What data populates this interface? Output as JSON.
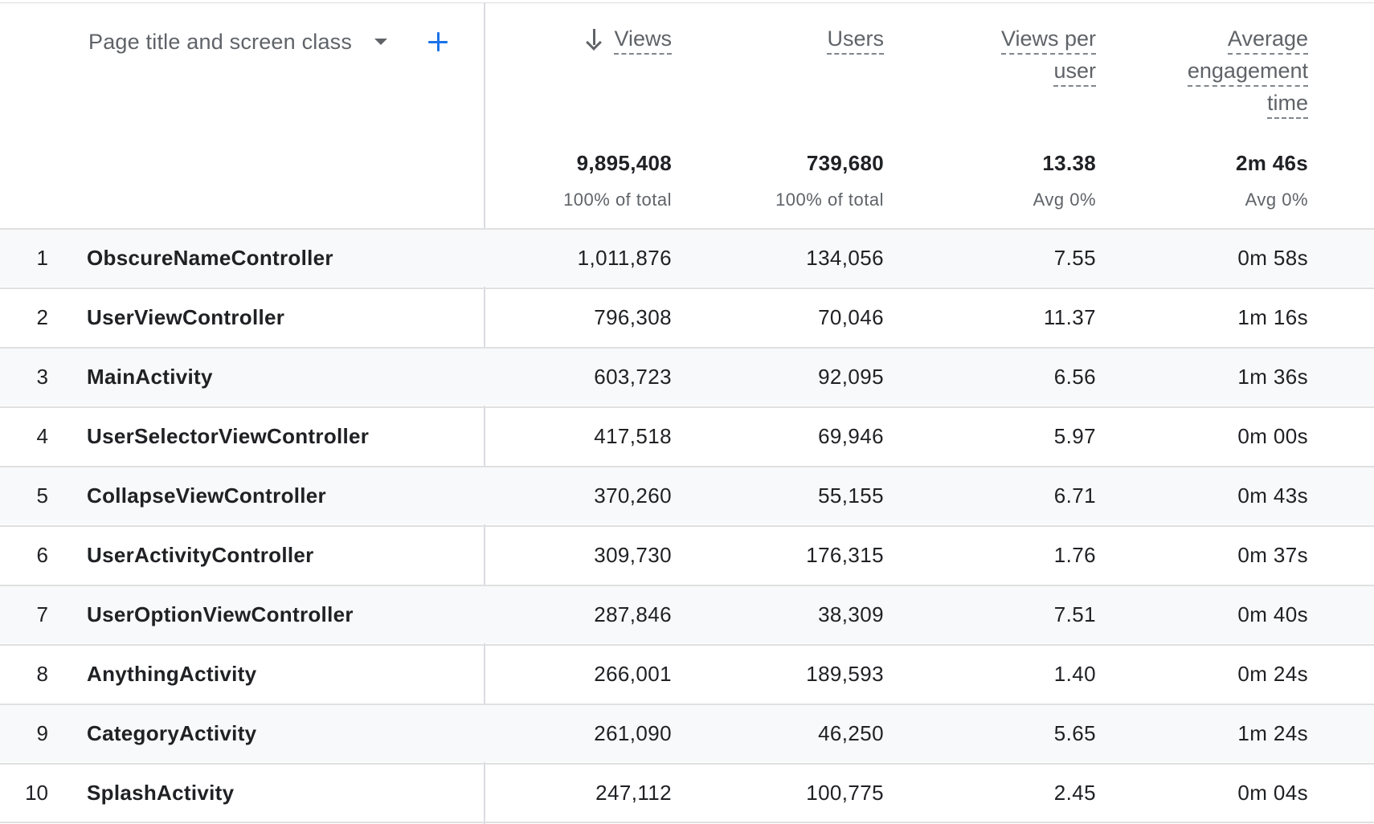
{
  "table": {
    "dimension_label": "Page title and screen class",
    "columns": [
      {
        "label_lines": [
          "Views"
        ],
        "sorted": true
      },
      {
        "label_lines": [
          "Users"
        ],
        "sorted": false
      },
      {
        "label_lines": [
          "Views per",
          "user"
        ],
        "sorted": false
      },
      {
        "label_lines": [
          "Average",
          "engagement",
          "time"
        ],
        "sorted": false
      }
    ],
    "totals": [
      {
        "value": "9,895,408",
        "sub": "100% of total"
      },
      {
        "value": "739,680",
        "sub": "100% of total"
      },
      {
        "value": "13.38",
        "sub": "Avg 0%"
      },
      {
        "value": "2m 46s",
        "sub": "Avg 0%"
      }
    ],
    "rows": [
      {
        "index": "1",
        "name": "ObscureNameController",
        "values": [
          "1,011,876",
          "134,056",
          "7.55",
          "0m 58s"
        ]
      },
      {
        "index": "2",
        "name": "UserViewController",
        "values": [
          "796,308",
          "70,046",
          "11.37",
          "1m 16s"
        ]
      },
      {
        "index": "3",
        "name": "MainActivity",
        "values": [
          "603,723",
          "92,095",
          "6.56",
          "1m 36s"
        ]
      },
      {
        "index": "4",
        "name": "UserSelectorViewController",
        "values": [
          "417,518",
          "69,946",
          "5.97",
          "0m 00s"
        ]
      },
      {
        "index": "5",
        "name": "CollapseViewController",
        "values": [
          "370,260",
          "55,155",
          "6.71",
          "0m 43s"
        ]
      },
      {
        "index": "6",
        "name": "UserActivityController",
        "values": [
          "309,730",
          "176,315",
          "1.76",
          "0m 37s"
        ]
      },
      {
        "index": "7",
        "name": "UserOptionViewController",
        "values": [
          "287,846",
          "38,309",
          "7.51",
          "0m 40s"
        ]
      },
      {
        "index": "8",
        "name": "AnythingActivity",
        "values": [
          "266,001",
          "189,593",
          "1.40",
          "0m 24s"
        ]
      },
      {
        "index": "9",
        "name": "CategoryActivity",
        "values": [
          "261,090",
          "46,250",
          "5.65",
          "1m 24s"
        ]
      },
      {
        "index": "10",
        "name": "SplashActivity",
        "values": [
          "247,112",
          "100,775",
          "2.45",
          "0m 04s"
        ]
      }
    ]
  },
  "icons": {
    "dimension_dropdown": "chevron-down-icon",
    "add_dimension": "plus-icon",
    "sort": "arrow-down-icon"
  },
  "colors": {
    "accent": "#1a73e8",
    "header_text": "#5f6368",
    "row_shade": "#f8f9fa",
    "border": "#e0e0e0"
  }
}
